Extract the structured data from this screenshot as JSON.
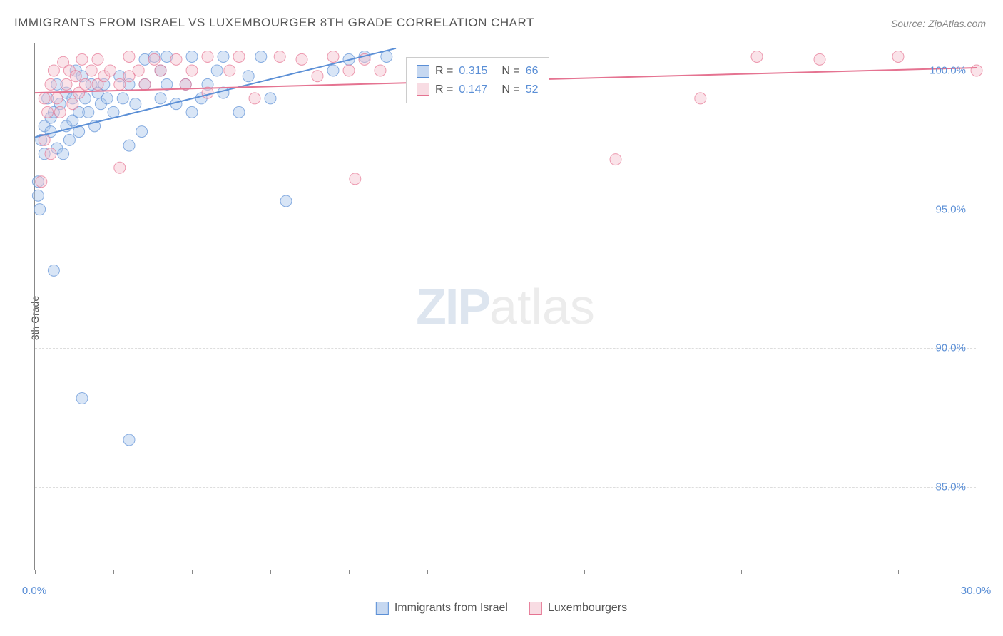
{
  "title": "IMMIGRANTS FROM ISRAEL VS LUXEMBOURGER 8TH GRADE CORRELATION CHART",
  "source": "Source: ZipAtlas.com",
  "watermark_zip": "ZIP",
  "watermark_atlas": "atlas",
  "ylabel": "8th Grade",
  "chart": {
    "type": "scatter",
    "x_range": [
      0,
      30
    ],
    "y_range": [
      82,
      101
    ],
    "x_ticks": [
      0,
      2.5,
      5,
      7.5,
      10,
      12.5,
      15,
      17.5,
      20,
      22.5,
      25,
      27.5,
      30
    ],
    "x_tick_labels": {
      "0": "0.0%",
      "30": "30.0%"
    },
    "y_gridlines": [
      85,
      90,
      95,
      100
    ],
    "y_tick_labels": {
      "85": "85.0%",
      "90": "90.0%",
      "95": "95.0%",
      "100": "100.0%"
    },
    "background_color": "#ffffff",
    "grid_color": "#dddddd",
    "axis_color": "#888888",
    "marker_radius": 8,
    "marker_opacity": 0.45,
    "series": [
      {
        "name": "Immigrants from Israel",
        "color_fill": "#a8c6eb",
        "color_stroke": "#5b8fd6",
        "R": "0.315",
        "N": "66",
        "regression": {
          "x1": 0,
          "y1": 97.6,
          "x2": 11.5,
          "y2": 100.8,
          "width": 2
        },
        "points": [
          [
            0.1,
            96.0
          ],
          [
            0.1,
            95.5
          ],
          [
            0.15,
            95.0
          ],
          [
            0.2,
            97.5
          ],
          [
            0.3,
            98.0
          ],
          [
            0.3,
            97.0
          ],
          [
            0.4,
            99.0
          ],
          [
            0.5,
            98.3
          ],
          [
            0.5,
            97.8
          ],
          [
            0.6,
            98.5
          ],
          [
            0.6,
            92.8
          ],
          [
            0.7,
            97.2
          ],
          [
            0.7,
            99.5
          ],
          [
            0.8,
            98.8
          ],
          [
            0.9,
            97.0
          ],
          [
            1.0,
            99.2
          ],
          [
            1.0,
            98.0
          ],
          [
            1.1,
            97.5
          ],
          [
            1.2,
            99.0
          ],
          [
            1.2,
            98.2
          ],
          [
            1.3,
            100.0
          ],
          [
            1.4,
            98.5
          ],
          [
            1.4,
            97.8
          ],
          [
            1.5,
            99.8
          ],
          [
            1.5,
            88.2
          ],
          [
            1.6,
            99.0
          ],
          [
            1.7,
            98.5
          ],
          [
            1.8,
            99.5
          ],
          [
            1.9,
            98.0
          ],
          [
            2.0,
            99.2
          ],
          [
            2.1,
            98.8
          ],
          [
            2.2,
            99.5
          ],
          [
            2.3,
            99.0
          ],
          [
            2.5,
            98.5
          ],
          [
            2.7,
            99.8
          ],
          [
            2.8,
            99.0
          ],
          [
            3.0,
            99.5
          ],
          [
            3.0,
            97.3
          ],
          [
            3.0,
            86.7
          ],
          [
            3.2,
            98.8
          ],
          [
            3.4,
            97.8
          ],
          [
            3.5,
            99.5
          ],
          [
            3.5,
            100.4
          ],
          [
            3.8,
            100.5
          ],
          [
            4.0,
            100.0
          ],
          [
            4.0,
            99.0
          ],
          [
            4.2,
            99.5
          ],
          [
            4.2,
            100.5
          ],
          [
            4.5,
            98.8
          ],
          [
            4.8,
            99.5
          ],
          [
            5.0,
            98.5
          ],
          [
            5.0,
            100.5
          ],
          [
            5.3,
            99.0
          ],
          [
            5.5,
            99.5
          ],
          [
            5.8,
            100.0
          ],
          [
            6.0,
            99.2
          ],
          [
            6.0,
            100.5
          ],
          [
            6.5,
            98.5
          ],
          [
            6.8,
            99.8
          ],
          [
            7.2,
            100.5
          ],
          [
            7.5,
            99.0
          ],
          [
            8.0,
            95.3
          ],
          [
            9.5,
            100.0
          ],
          [
            10.0,
            100.4
          ],
          [
            10.5,
            100.5
          ],
          [
            11.2,
            100.5
          ]
        ]
      },
      {
        "name": "Luxembourgers",
        "color_fill": "#f5c0ce",
        "color_stroke": "#e57391",
        "R": "0.147",
        "N": "52",
        "regression": {
          "x1": 0,
          "y1": 99.2,
          "x2": 30,
          "y2": 100.1,
          "width": 2
        },
        "points": [
          [
            0.2,
            96.0
          ],
          [
            0.3,
            97.5
          ],
          [
            0.3,
            99.0
          ],
          [
            0.4,
            98.5
          ],
          [
            0.5,
            99.5
          ],
          [
            0.5,
            97.0
          ],
          [
            0.6,
            100.0
          ],
          [
            0.7,
            99.0
          ],
          [
            0.8,
            98.5
          ],
          [
            0.9,
            100.3
          ],
          [
            1.0,
            99.5
          ],
          [
            1.1,
            100.0
          ],
          [
            1.2,
            98.8
          ],
          [
            1.3,
            99.8
          ],
          [
            1.4,
            99.2
          ],
          [
            1.5,
            100.4
          ],
          [
            1.6,
            99.5
          ],
          [
            1.8,
            100.0
          ],
          [
            2.0,
            99.5
          ],
          [
            2.0,
            100.4
          ],
          [
            2.2,
            99.8
          ],
          [
            2.4,
            100.0
          ],
          [
            2.7,
            99.5
          ],
          [
            2.7,
            96.5
          ],
          [
            3.0,
            99.8
          ],
          [
            3.0,
            100.5
          ],
          [
            3.3,
            100.0
          ],
          [
            3.5,
            99.5
          ],
          [
            3.8,
            100.4
          ],
          [
            4.0,
            100.0
          ],
          [
            4.5,
            100.4
          ],
          [
            4.8,
            99.5
          ],
          [
            5.0,
            100.0
          ],
          [
            5.5,
            100.5
          ],
          [
            5.5,
            99.2
          ],
          [
            6.2,
            100.0
          ],
          [
            6.5,
            100.5
          ],
          [
            7.0,
            99.0
          ],
          [
            7.8,
            100.5
          ],
          [
            8.5,
            100.4
          ],
          [
            9.0,
            99.8
          ],
          [
            9.5,
            100.5
          ],
          [
            10.0,
            100.0
          ],
          [
            10.2,
            96.1
          ],
          [
            10.5,
            100.4
          ],
          [
            11.0,
            100.0
          ],
          [
            18.5,
            96.8
          ],
          [
            21.2,
            99.0
          ],
          [
            23.0,
            100.5
          ],
          [
            25.0,
            100.4
          ],
          [
            27.5,
            100.5
          ],
          [
            30.0,
            100.0
          ]
        ]
      }
    ]
  },
  "legend": {
    "rows": [
      {
        "swatch": "blue",
        "R_label": "R =",
        "R_value": "0.315",
        "N_label": "N =",
        "N_value": "66"
      },
      {
        "swatch": "pink",
        "R_label": "R =",
        "R_value": "0.147",
        "N_label": "N =",
        "N_value": "52"
      }
    ]
  },
  "bottom_legend": [
    {
      "swatch": "blue",
      "label": "Immigrants from Israel"
    },
    {
      "swatch": "pink",
      "label": "Luxembourgers"
    }
  ]
}
